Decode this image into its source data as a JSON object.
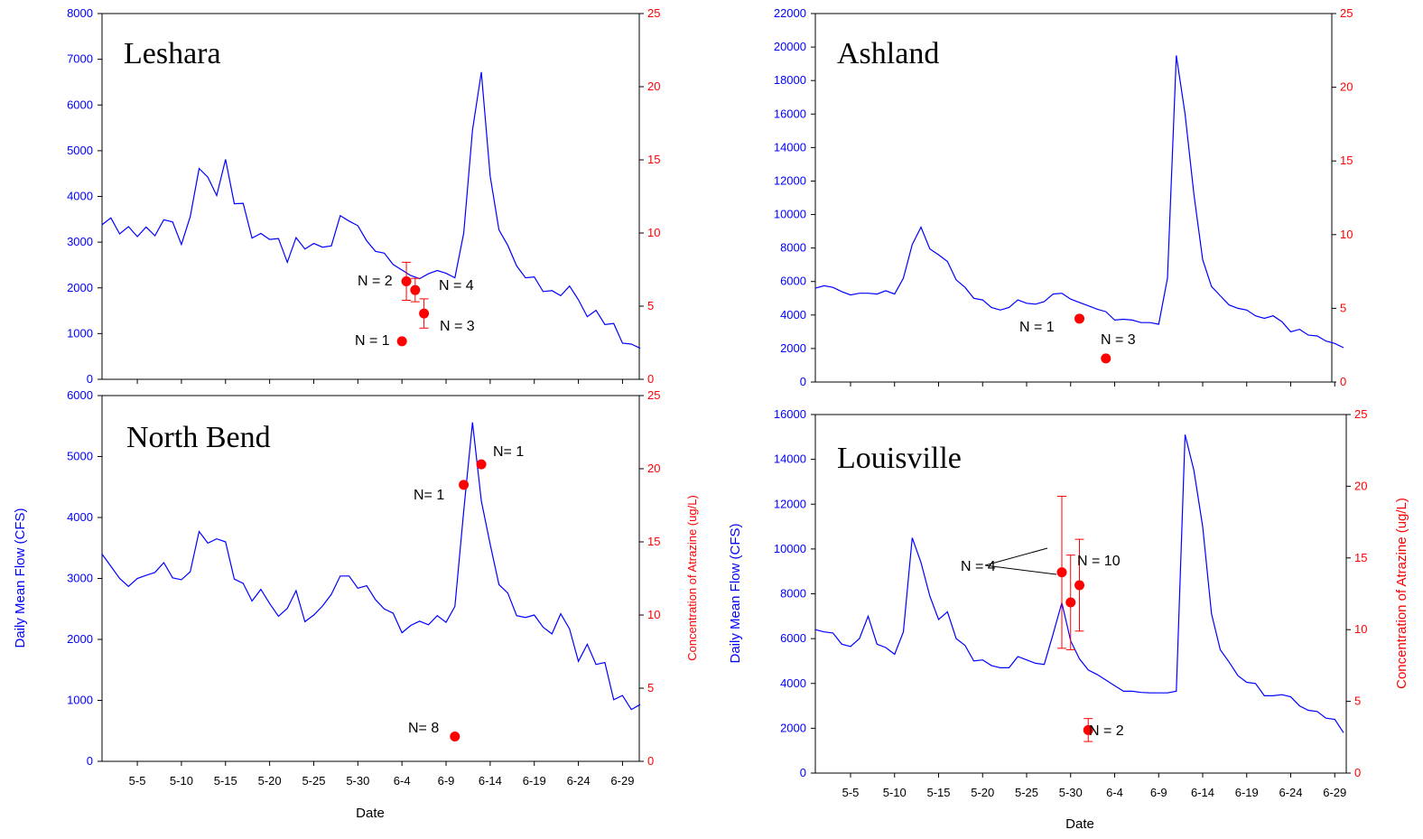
{
  "colors": {
    "flow": "#0000ff",
    "atrazine": "#ff0000",
    "axis": "#000000",
    "background": "#ffffff"
  },
  "shared": {
    "ylabel_left": "Daily Mean Flow (CFS)",
    "ylabel_right": "Concentration of Atrazine (ug/L)",
    "xlabel": "Date",
    "x_ticks": [
      "5-5",
      "5-10",
      "5-15",
      "5-20",
      "5-25",
      "5-30",
      "6-4",
      "6-9",
      "6-14",
      "6-19",
      "6-24",
      "6-29"
    ]
  },
  "chart_data": [
    {
      "type": "line",
      "site": "Leshara",
      "x_range": [
        "5-1",
        "7-1"
      ],
      "ylim_left": [
        0,
        8000
      ],
      "ylim_right": [
        0,
        25
      ],
      "yticks_left": [
        0,
        1000,
        2000,
        3000,
        4000,
        5000,
        6000,
        7000,
        8000
      ],
      "yticks_right": [
        0,
        5,
        10,
        15,
        20,
        25
      ],
      "show_ylabel_left": false,
      "show_ylabel_right": false,
      "show_xlabel": false,
      "series": [
        {
          "axis": "left",
          "values": [
            3380,
            3530,
            3180,
            3340,
            3120,
            3330,
            3140,
            3490,
            3440,
            2950,
            3560,
            4610,
            4420,
            4020,
            4810,
            3840,
            3850,
            3090,
            3190,
            3060,
            3080,
            2560,
            3100,
            2850,
            2970,
            2890,
            2920,
            3580,
            3460,
            3360,
            3030,
            2800,
            2760,
            2510,
            2390,
            2270,
            2200,
            2310,
            2380,
            2320,
            2220,
            3200,
            5450,
            6720,
            4440,
            3270,
            2930,
            2480,
            2220,
            2240,
            1920,
            1940,
            1830,
            2040,
            1740,
            1370,
            1510,
            1200,
            1220,
            790,
            770,
            680
          ]
        }
      ],
      "points": [
        {
          "x": 4.5,
          "y": 6.7,
          "err": 1.3,
          "label": "N = 2"
        },
        {
          "x": 5.5,
          "y": 6.1,
          "err": 0.8,
          "label": "N = 4"
        },
        {
          "x": 6.5,
          "y": 4.5,
          "err": 1.0,
          "label": "N = 3"
        },
        {
          "x": 4,
          "y": 2.6,
          "err": 0,
          "label": "N = 1"
        }
      ]
    },
    {
      "type": "line",
      "site": "Ashland",
      "x_range": [
        "5-1",
        "7-1"
      ],
      "ylim_left": [
        0,
        22000
      ],
      "ylim_right": [
        0,
        25
      ],
      "yticks_left": [
        0,
        2000,
        4000,
        6000,
        8000,
        10000,
        12000,
        14000,
        16000,
        18000,
        20000,
        22000
      ],
      "yticks_right": [
        0,
        5,
        10,
        15,
        20,
        25
      ],
      "show_ylabel_left": false,
      "show_ylabel_right": false,
      "show_xlabel": false,
      "series": [
        {
          "axis": "left",
          "values": [
            5600,
            5750,
            5650,
            5400,
            5200,
            5300,
            5300,
            5250,
            5450,
            5250,
            6200,
            8200,
            9250,
            7950,
            7600,
            7200,
            6100,
            5650,
            5000,
            4900,
            4450,
            4300,
            4450,
            4900,
            4700,
            4650,
            4800,
            5250,
            5300,
            4950,
            4750,
            4550,
            4350,
            4200,
            3700,
            3750,
            3700,
            3550,
            3550,
            3450,
            6200,
            19500,
            16000,
            11200,
            7300,
            5700,
            5150,
            4600,
            4400,
            4300,
            3950,
            3800,
            3950,
            3600,
            3000,
            3150,
            2800,
            2750,
            2450,
            2300,
            2050
          ]
        }
      ],
      "points": [
        {
          "x": 0.5,
          "y": 4.3,
          "err": 0,
          "label": "N = 1"
        },
        {
          "x": 3.5,
          "y": 1.6,
          "err": 0,
          "label": "N = 3"
        }
      ]
    },
    {
      "type": "line",
      "site": "North Bend",
      "x_range": [
        "5-1",
        "7-1"
      ],
      "ylim_left": [
        0,
        6000
      ],
      "ylim_right": [
        0,
        25
      ],
      "yticks_left": [
        0,
        1000,
        2000,
        3000,
        4000,
        5000,
        6000
      ],
      "yticks_right": [
        0,
        5,
        10,
        15,
        20,
        25
      ],
      "show_ylabel_left": true,
      "show_ylabel_right": true,
      "show_xlabel": true,
      "series": [
        {
          "axis": "left",
          "values": [
            3400,
            3200,
            3000,
            2870,
            3000,
            3050,
            3100,
            3260,
            3010,
            2980,
            3110,
            3770,
            3580,
            3650,
            3600,
            2990,
            2920,
            2630,
            2820,
            2590,
            2380,
            2510,
            2800,
            2290,
            2400,
            2550,
            2740,
            3040,
            3040,
            2840,
            2880,
            2650,
            2500,
            2430,
            2110,
            2230,
            2300,
            2240,
            2390,
            2280,
            2540,
            4110,
            5560,
            4270,
            3560,
            2900,
            2760,
            2390,
            2360,
            2400,
            2200,
            2090,
            2420,
            2170,
            1640,
            1920,
            1590,
            1620,
            1010,
            1080,
            850,
            930
          ]
        }
      ],
      "points": [
        {
          "x": 10,
          "y": 1.7,
          "err": 0,
          "label": "N= 8"
        },
        {
          "x": 11,
          "y": 18.9,
          "err": 0,
          "label": "N= 1"
        },
        {
          "x": 13,
          "y": 20.3,
          "err": 0,
          "label": "N= 1"
        }
      ]
    },
    {
      "type": "line",
      "site": "Louisville",
      "x_range": [
        "5-1",
        "7-1"
      ],
      "ylim_left": [
        0,
        16000
      ],
      "ylim_right": [
        0,
        25
      ],
      "yticks_left": [
        0,
        2000,
        4000,
        6000,
        8000,
        10000,
        12000,
        14000,
        16000
      ],
      "yticks_right": [
        0,
        5,
        10,
        15,
        20,
        25
      ],
      "show_ylabel_left": true,
      "show_ylabel_right": true,
      "show_xlabel": true,
      "series": [
        {
          "axis": "left",
          "values": [
            6400,
            6300,
            6250,
            5750,
            5650,
            6000,
            7000,
            5750,
            5600,
            5300,
            6300,
            10500,
            9400,
            7900,
            6850,
            7200,
            6000,
            5700,
            5000,
            5050,
            4800,
            4700,
            4700,
            5200,
            5050,
            4900,
            4850,
            6200,
            7600,
            5900,
            5100,
            4600,
            4400,
            4150,
            3900,
            3650,
            3650,
            3600,
            3580,
            3580,
            3580,
            3650,
            15100,
            13500,
            11000,
            7100,
            5500,
            4950,
            4350,
            4050,
            4000,
            3450,
            3450,
            3500,
            3400,
            3000,
            2800,
            2750,
            2450,
            2400,
            1800
          ]
        }
      ],
      "points": [
        {
          "x": 28,
          "y": 14.0,
          "err": 5.3,
          "label": "N = 4"
        },
        {
          "x": 29,
          "y": 11.9,
          "err": 3.3,
          "label": "N = 4"
        },
        {
          "x": 30,
          "y": 13.1,
          "err": 3.2,
          "label": "N = 10"
        },
        {
          "x": 31,
          "y": 3.0,
          "err": 0.8,
          "label": "N = 2"
        }
      ]
    }
  ]
}
